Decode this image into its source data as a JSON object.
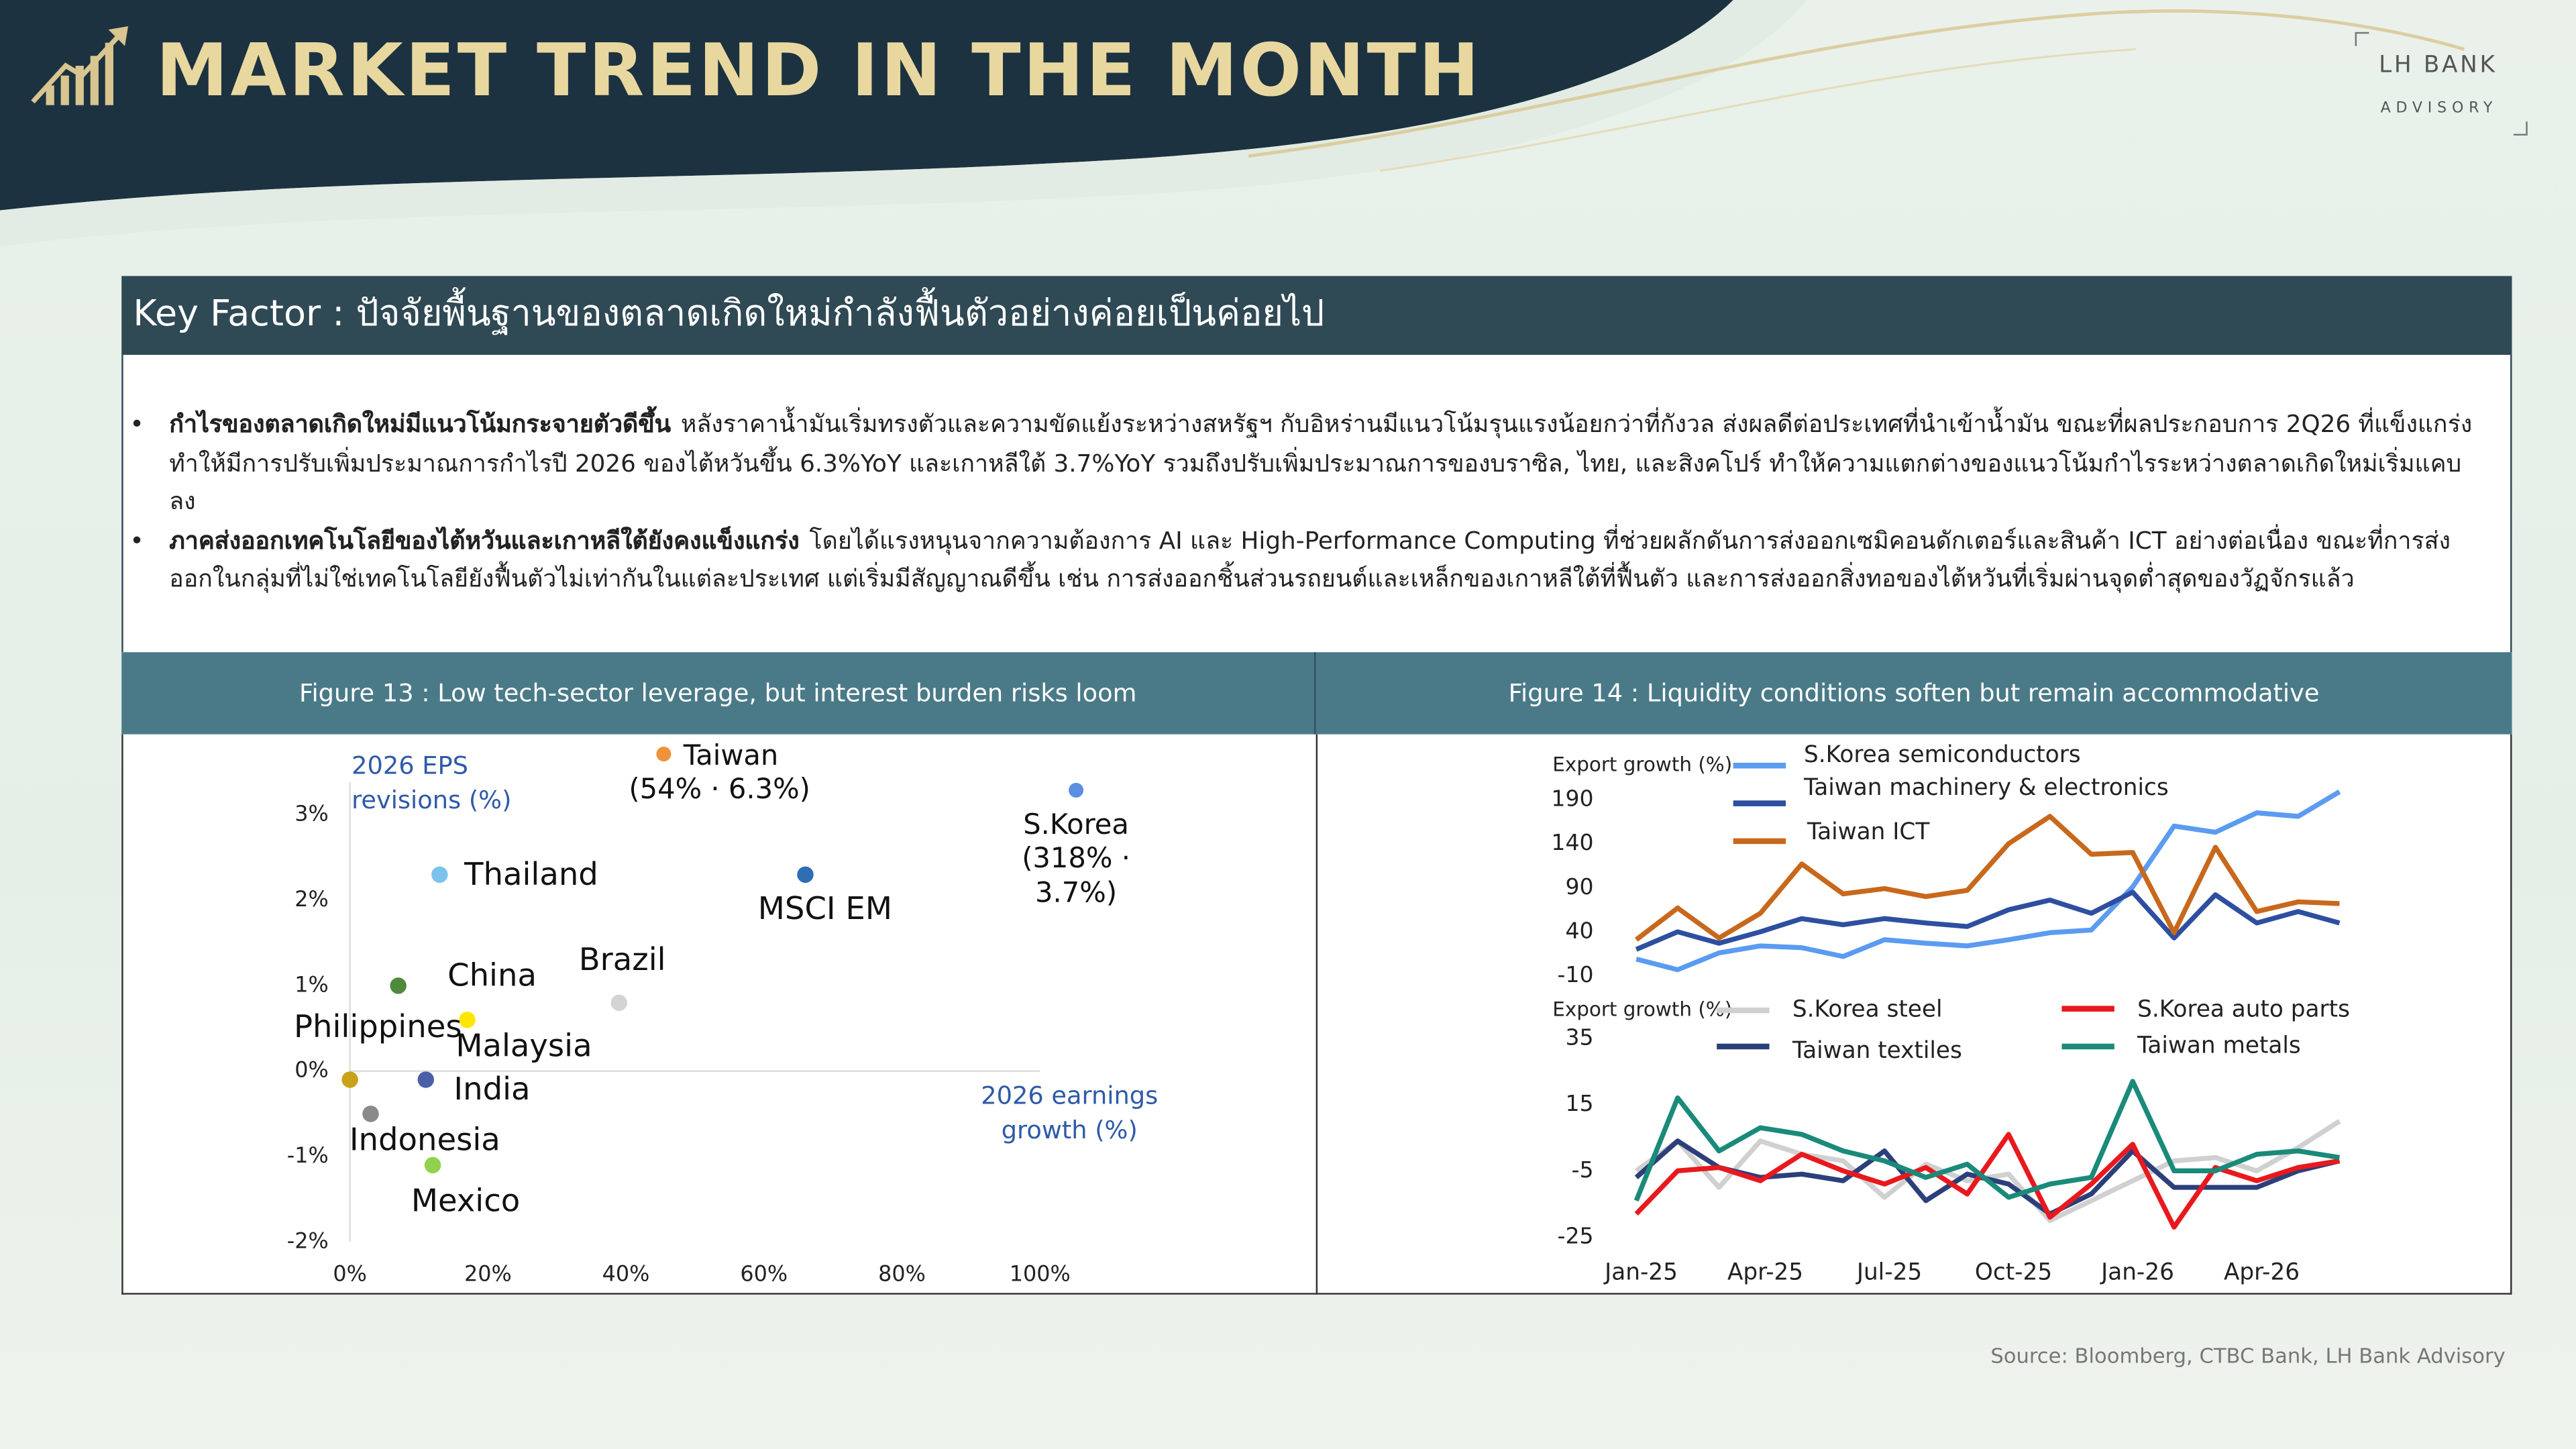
{
  "header": {
    "title": "MARKET TREND IN THE MONTH",
    "brand": "LH BANK",
    "brand_sub": "ADVISORY"
  },
  "key_factor": {
    "title": "Key Factor : ปัจจัยพื้นฐานของตลาดเกิดใหม่กำลังฟื้นตัวอย่างค่อยเป็นค่อยไป",
    "bullets": [
      {
        "lead": "กำไรของตลาดเกิดใหม่มีแนวโน้มกระจายตัวดีขึ้น",
        "text": "หลังราคาน้ำมันเริ่มทรงตัวและความขัดแย้งระหว่างสหรัฐฯ กับอิหร่านมีแนวโน้มรุนแรงน้อยกว่าที่กังวล ส่งผลดีต่อประเทศที่นำเข้าน้ำมัน ขณะที่ผลประกอบการ 2Q26 ที่แข็งแกร่งทำให้มีการปรับเพิ่มประมาณการกำไรปี 2026 ของไต้หวันขึ้น 6.3%YoY และเกาหลีใต้ 3.7%YoY รวมถึงปรับเพิ่มประมาณการของบราซิล, ไทย, และสิงคโปร์ ทำให้ความแตกต่างของแนวโน้มกำไรระหว่างตลาดเกิดใหม่เริ่มแคบลง"
      },
      {
        "lead": "ภาคส่งออกเทคโนโลยีของไต้หวันและเกาหลีใต้ยังคงแข็งแกร่ง",
        "text": "โดยได้แรงหนุนจากความต้องการ AI และ High-Performance Computing ที่ช่วยผลักดันการส่งออกเซมิคอนดักเตอร์และสินค้า ICT อย่างต่อเนื่อง ขณะที่การส่งออกในกลุ่มที่ไม่ใช่เทคโนโลยียังฟื้นตัวไม่เท่ากันในแต่ละประเทศ แต่เริ่มมีสัญญาณดีขึ้น เช่น การส่งออกชิ้นส่วนรถยนต์และเหล็กของเกาหลีใต้ที่ฟื้นตัว และการส่งออกสิ่งทอของไต้หวันที่เริ่มผ่านจุดต่ำสุดของวัฏจักรแล้ว"
      }
    ]
  },
  "chart_data": [
    {
      "type": "scatter",
      "title": "Figure 13 : Low tech-sector leverage, but interest burden risks loom",
      "y_label": "2026 EPS revisions (%)",
      "x_label": "2026 earnings growth (%)",
      "xlim": [
        0,
        100
      ],
      "xticks": [
        {
          "value": 0,
          "label": "0%"
        },
        {
          "value": 20,
          "label": "20%"
        },
        {
          "value": 40,
          "label": "40%"
        },
        {
          "value": 60,
          "label": "60%"
        },
        {
          "value": 80,
          "label": "80%"
        },
        {
          "value": 100,
          "label": "100%"
        }
      ],
      "ylim": [
        -2,
        3
      ],
      "yticks": [
        {
          "value": 3,
          "label": "3%"
        },
        {
          "value": 2,
          "label": "2%"
        },
        {
          "value": 1,
          "label": "1%"
        },
        {
          "value": 0,
          "label": "0%"
        },
        {
          "value": -1,
          "label": "-1%"
        },
        {
          "value": -2,
          "label": "-2%"
        }
      ],
      "points": [
        {
          "name": "Thailand",
          "x": 13,
          "y": 2.3,
          "color": "#7cc2ef"
        },
        {
          "name": "MSCI EM",
          "x": 66,
          "y": 2.3,
          "color": "#2f6db5"
        },
        {
          "name": "China",
          "x": 7,
          "y": 1.0,
          "color": "#4f8a3c"
        },
        {
          "name": "Brazil",
          "x": 39,
          "y": 0.8,
          "color": "#d4d4d4"
        },
        {
          "name": "Malaysia",
          "x": 17,
          "y": 0.6,
          "color": "#ffe600"
        },
        {
          "name": "Philippines",
          "x": 0,
          "y": -0.1,
          "color": "#c9a21a"
        },
        {
          "name": "India",
          "x": 11,
          "y": -0.1,
          "color": "#4b5fa8"
        },
        {
          "name": "Indonesia",
          "x": 3,
          "y": -0.5,
          "color": "#8a8a8a"
        },
        {
          "name": "Mexico",
          "x": 12,
          "y": -1.1,
          "color": "#92d050"
        }
      ],
      "annotations": [
        {
          "text": "Taiwan",
          "detail": "(54% · 6.3%)",
          "color": "#f0923a"
        },
        {
          "text": "S.Korea",
          "detail": "(318% · 3.7%)",
          "color": "#5b8fe0"
        }
      ]
    },
    {
      "type": "line",
      "title": "Figure 14 : Liquidity conditions soften but remain accommodative",
      "y_label": "Export growth (%)",
      "ylim": [
        -10,
        210
      ],
      "yticks": [
        190,
        140,
        90,
        40,
        -10
      ],
      "series": [
        {
          "name": "S.Korea semiconductors",
          "color": "#5b9bf0",
          "values": [
            9,
            -3,
            16,
            24,
            22,
            12,
            31,
            27,
            24,
            31,
            39,
            42,
            91,
            160,
            153,
            175,
            171,
            199
          ]
        },
        {
          "name": "Taiwan machinery & electronics",
          "color": "#2e4fa0",
          "values": [
            20,
            40,
            27,
            40,
            55,
            48,
            55,
            50,
            46,
            65,
            76,
            61,
            85,
            33,
            82,
            50,
            63,
            50
          ]
        },
        {
          "name": "Taiwan ICT",
          "color": "#c8681c",
          "values": [
            31,
            67,
            33,
            61,
            117,
            83,
            89,
            80,
            87,
            140,
            171,
            128,
            130,
            39,
            136,
            63,
            74,
            72
          ]
        }
      ]
    },
    {
      "type": "line",
      "y_label": "Export growth (%)",
      "categories": [
        "Jan-25",
        null,
        null,
        "Apr-25",
        null,
        null,
        "Jul-25",
        null,
        null,
        "Oct-25",
        null,
        null,
        "Jan-26",
        null,
        null,
        "Apr-26",
        null,
        null
      ],
      "ylim": [
        -25,
        35
      ],
      "yticks": [
        35,
        15,
        -5,
        -25
      ],
      "series": [
        {
          "name": "S.Korea steel",
          "color": "#d0d0d0",
          "values": [
            -5,
            4,
            -10,
            4,
            0,
            -2,
            -13,
            -3,
            -8,
            -6,
            -20,
            -14,
            -8,
            -2,
            -1,
            -5,
            2,
            10
          ]
        },
        {
          "name": "Taiwan textiles",
          "color": "#2b3f7a",
          "values": [
            -7,
            4,
            -4,
            -7,
            -6,
            -8,
            1,
            -14,
            -6,
            -9,
            -18,
            -12,
            1,
            -10,
            -10,
            -10,
            -5,
            -2
          ]
        },
        {
          "name": "S.Korea auto parts",
          "color": "#e8191e",
          "values": [
            -18,
            -5,
            -4,
            -8,
            0,
            -5,
            -9,
            -4,
            -12,
            6,
            -19,
            -9,
            3,
            -22,
            -4,
            -8,
            -4,
            -2
          ]
        },
        {
          "name": "Taiwan metals",
          "color": "#1a8a7a",
          "values": [
            -14,
            17,
            1,
            8,
            6,
            1,
            -2,
            -7,
            -3,
            -13,
            -9,
            -7,
            22,
            -5,
            -5,
            0,
            1,
            -1
          ]
        }
      ]
    }
  ],
  "source": "Source: Bloomberg, CTBC Bank, LH Bank Advisory"
}
